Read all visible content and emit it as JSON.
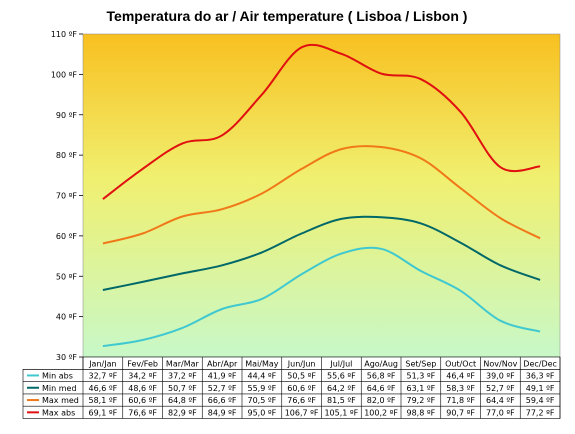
{
  "chart_data": {
    "type": "line",
    "title": "Temperatura do ar / Air temperature ( Lisboa / Lisbon )",
    "ylim": [
      30,
      110
    ],
    "y_ticks": [
      "110 ºF",
      "100 ºF",
      "90 ºF",
      "80 ºF",
      "70 ºF",
      "60 ºF",
      "50 ºF",
      "40 ºF",
      "30 ºF"
    ],
    "y_tick_values": [
      110,
      100,
      90,
      80,
      70,
      60,
      50,
      40,
      30
    ],
    "categories": [
      "Jan/Jan",
      "Fev/Feb",
      "Mar/Mar",
      "Abr/Apr",
      "Mai/May",
      "Jun/Jun",
      "Jul/Jul",
      "Ago/Aug",
      "Set/Sep",
      "Out/Oct",
      "Nov/Nov",
      "Dec/Dec"
    ],
    "series": [
      {
        "name": "Min abs",
        "color": "#40c8d0",
        "values": [
          32.7,
          34.2,
          37.2,
          41.9,
          44.4,
          50.5,
          55.6,
          56.8,
          51.3,
          46.4,
          39.0,
          36.3
        ],
        "labels": [
          "32,7 ºF",
          "34,2 ºF",
          "37,2 ºF",
          "41,9 ºF",
          "44,4 ºF",
          "50,5 ºF",
          "55,6 ºF",
          "56,8 ºF",
          "51,3 ºF",
          "46,4 ºF",
          "39,0 ºF",
          "36,3 ºF"
        ]
      },
      {
        "name": "Min med",
        "color": "#006868",
        "values": [
          46.6,
          48.6,
          50.7,
          52.7,
          55.9,
          60.6,
          64.2,
          64.6,
          63.1,
          58.3,
          52.7,
          49.1
        ],
        "labels": [
          "46,6 ºF",
          "48,6 ºF",
          "50,7 ºF",
          "52,7 ºF",
          "55,9 ºF",
          "60,6 ºF",
          "64,2 ºF",
          "64,6 ºF",
          "63,1 ºF",
          "58,3 ºF",
          "52,7 ºF",
          "49,1 ºF"
        ]
      },
      {
        "name": "Max med",
        "color": "#f07818",
        "values": [
          58.1,
          60.6,
          64.8,
          66.6,
          70.5,
          76.6,
          81.5,
          82.0,
          79.2,
          71.8,
          64.4,
          59.4
        ],
        "labels": [
          "58,1 ºF",
          "60,6 ºF",
          "64,8 ºF",
          "66,6 ºF",
          "70,5 ºF",
          "76,6 ºF",
          "81,5 ºF",
          "82,0 ºF",
          "79,2 ºF",
          "71,8 ºF",
          "64,4 ºF",
          "59,4 ºF"
        ]
      },
      {
        "name": "Max abs",
        "color": "#e01010",
        "values": [
          69.1,
          76.6,
          82.9,
          84.9,
          95.0,
          106.7,
          105.1,
          100.2,
          98.8,
          90.7,
          77.0,
          77.2
        ],
        "labels": [
          "69,1 ºF",
          "76,6 ºF",
          "82,9 ºF",
          "84,9 ºF",
          "95,0 ºF",
          "106,7 ºF",
          "105,1 ºF",
          "100,2 ºF",
          "98,8 ºF",
          "90,7 ºF",
          "77,0 ºF",
          "77,2 ºF"
        ]
      }
    ],
    "grid": false,
    "legend": "table-below"
  }
}
